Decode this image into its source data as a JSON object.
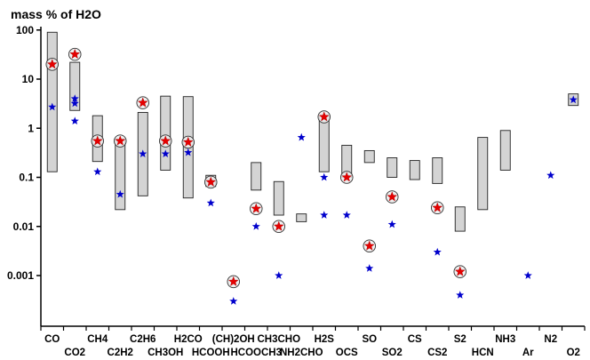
{
  "chart_data": {
    "type": "range-bar-with-markers",
    "title": "mass  % of H2O",
    "yscale": "log",
    "ylim": [
      0.0001,
      150
    ],
    "yticks": [
      {
        "value": 100,
        "label": "100"
      },
      {
        "value": 10,
        "label": "10"
      },
      {
        "value": 1,
        "label": "1"
      },
      {
        "value": 0.1,
        "label": "0.1"
      },
      {
        "value": 0.01,
        "label": "0.01"
      },
      {
        "value": 0.001,
        "label": "0.001"
      }
    ],
    "categories": [
      "CO",
      "CO2",
      "CH4",
      "C2H2",
      "C2H6",
      "CH3OH",
      "H2CO",
      "HCOOH",
      "(CH)2OH",
      "HCOOCH3",
      "CH3CHO",
      "NH2CHO",
      "H2S",
      "OCS",
      "SO",
      "SO2",
      "CS",
      "CS2",
      "S2",
      "HCN",
      "NH3",
      "Ar",
      "N2",
      "O2"
    ],
    "label_row": [
      "top",
      "bottom",
      "top",
      "bottom",
      "top",
      "bottom",
      "top",
      "bottom",
      "top",
      "bottom",
      "top",
      "bottom",
      "top",
      "bottom",
      "top",
      "bottom",
      "top",
      "bottom",
      "top",
      "bottom",
      "top",
      "bottom",
      "top",
      "bottom"
    ],
    "ranges": [
      {
        "category": "CO",
        "low": 0.13,
        "high": 90
      },
      {
        "category": "CO2",
        "low": 2.3,
        "high": 22
      },
      {
        "category": "CH4",
        "low": 0.21,
        "high": 1.8
      },
      {
        "category": "C2H2",
        "low": 0.022,
        "high": 0.6
      },
      {
        "category": "C2H6",
        "low": 0.042,
        "high": 2.1
      },
      {
        "category": "CH3OH",
        "low": 0.14,
        "high": 4.5
      },
      {
        "category": "H2CO",
        "low": 0.038,
        "high": 4.4
      },
      {
        "category": "HCOOH",
        "low": 0.065,
        "high": 0.11
      },
      {
        "category": "HCOOCH3",
        "low": 0.055,
        "high": 0.2
      },
      {
        "category": "CH3CHO",
        "low": 0.017,
        "high": 0.082
      },
      {
        "category": "NH2CHO",
        "low": 0.0125,
        "high": 0.018
      },
      {
        "category": "H2S",
        "low": 0.13,
        "high": 1.8
      },
      {
        "category": "OCS",
        "low": 0.1,
        "high": 0.45
      },
      {
        "category": "SO",
        "low": 0.2,
        "high": 0.35
      },
      {
        "category": "SO2",
        "low": 0.1,
        "high": 0.25
      },
      {
        "category": "CS",
        "low": 0.09,
        "high": 0.22
      },
      {
        "category": "CS2",
        "low": 0.075,
        "high": 0.25
      },
      {
        "category": "S2",
        "low": 0.008,
        "high": 0.025
      },
      {
        "category": "HCN",
        "low": 0.022,
        "high": 0.65
      },
      {
        "category": "NH3",
        "low": 0.14,
        "high": 0.9
      },
      {
        "category": "O2",
        "low": 2.9,
        "high": 5.0
      }
    ],
    "series": [
      {
        "name": "red stars (circled)",
        "color": "#e60000",
        "points": [
          {
            "category": "CO",
            "value": 20
          },
          {
            "category": "CO2",
            "value": 32
          },
          {
            "category": "CH4",
            "value": 0.55
          },
          {
            "category": "C2H2",
            "value": 0.55
          },
          {
            "category": "C2H6",
            "value": 3.3
          },
          {
            "category": "CH3OH",
            "value": 0.55
          },
          {
            "category": "H2CO",
            "value": 0.52
          },
          {
            "category": "HCOOH",
            "value": 0.08
          },
          {
            "category": "(CH)2OH",
            "value": 0.00075
          },
          {
            "category": "HCOOCH3",
            "value": 0.023
          },
          {
            "category": "CH3CHO",
            "value": 0.01
          },
          {
            "category": "H2S",
            "value": 1.7
          },
          {
            "category": "OCS",
            "value": 0.1
          },
          {
            "category": "SO",
            "value": 0.004
          },
          {
            "category": "SO2",
            "value": 0.04
          },
          {
            "category": "CS2",
            "value": 0.024
          },
          {
            "category": "S2",
            "value": 0.0012
          }
        ]
      },
      {
        "name": "blue stars",
        "color": "#0000cc",
        "points": [
          {
            "category": "CO",
            "value": 2.7
          },
          {
            "category": "CO2",
            "value": 3.2
          },
          {
            "category": "CO2",
            "value": 4.0
          },
          {
            "category": "CO2",
            "value": 1.4
          },
          {
            "category": "CH4",
            "value": 0.13
          },
          {
            "category": "C2H2",
            "value": 0.045
          },
          {
            "category": "C2H6",
            "value": 0.3
          },
          {
            "category": "CH3OH",
            "value": 0.3
          },
          {
            "category": "H2CO",
            "value": 0.32
          },
          {
            "category": "HCOOH",
            "value": 0.03
          },
          {
            "category": "(CH)2OH",
            "value": 0.0003
          },
          {
            "category": "HCOOCH3",
            "value": 0.01
          },
          {
            "category": "CH3CHO",
            "value": 0.001
          },
          {
            "category": "NH2CHO",
            "value": 0.65
          },
          {
            "category": "H2S",
            "value": 0.1
          },
          {
            "category": "H2S",
            "value": 0.017
          },
          {
            "category": "OCS",
            "value": 0.017
          },
          {
            "category": "SO",
            "value": 0.0014
          },
          {
            "category": "SO2",
            "value": 0.011
          },
          {
            "category": "CS2",
            "value": 0.003
          },
          {
            "category": "S2",
            "value": 0.0004
          },
          {
            "category": "Ar",
            "value": 0.001
          },
          {
            "category": "N2",
            "value": 0.11
          },
          {
            "category": "O2",
            "value": 3.8
          }
        ]
      }
    ]
  }
}
